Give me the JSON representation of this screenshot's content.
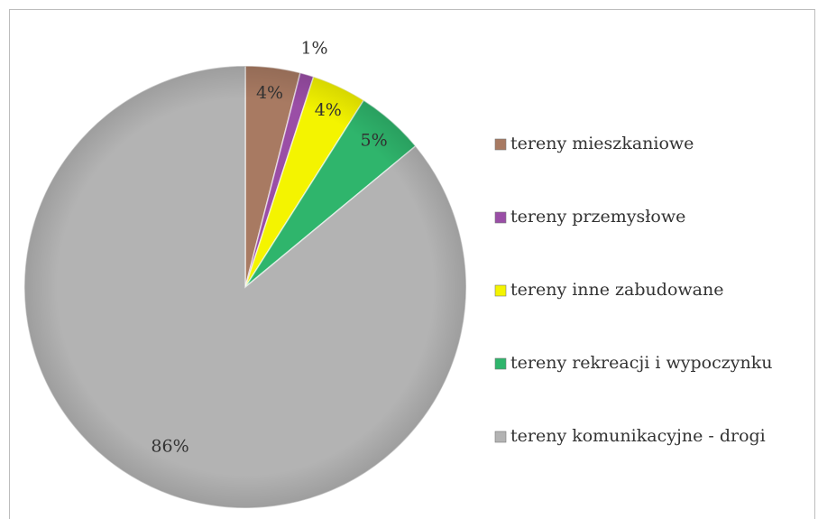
{
  "chart_data": {
    "type": "pie",
    "categories": [
      "tereny mieszkaniowe",
      "tereny przemysłowe",
      "tereny inne zabudowane",
      "tereny rekreacji i wypoczynku",
      "tereny komunikacyjne - drogi"
    ],
    "values": [
      4,
      1,
      4,
      5,
      86
    ],
    "value_labels": [
      "4%",
      "1%",
      "4%",
      "5%",
      "86%"
    ],
    "colors": [
      "#a87a62",
      "#9a4ea6",
      "#f4f400",
      "#2fb56c",
      "#b3b3b3"
    ],
    "legend": "right"
  }
}
